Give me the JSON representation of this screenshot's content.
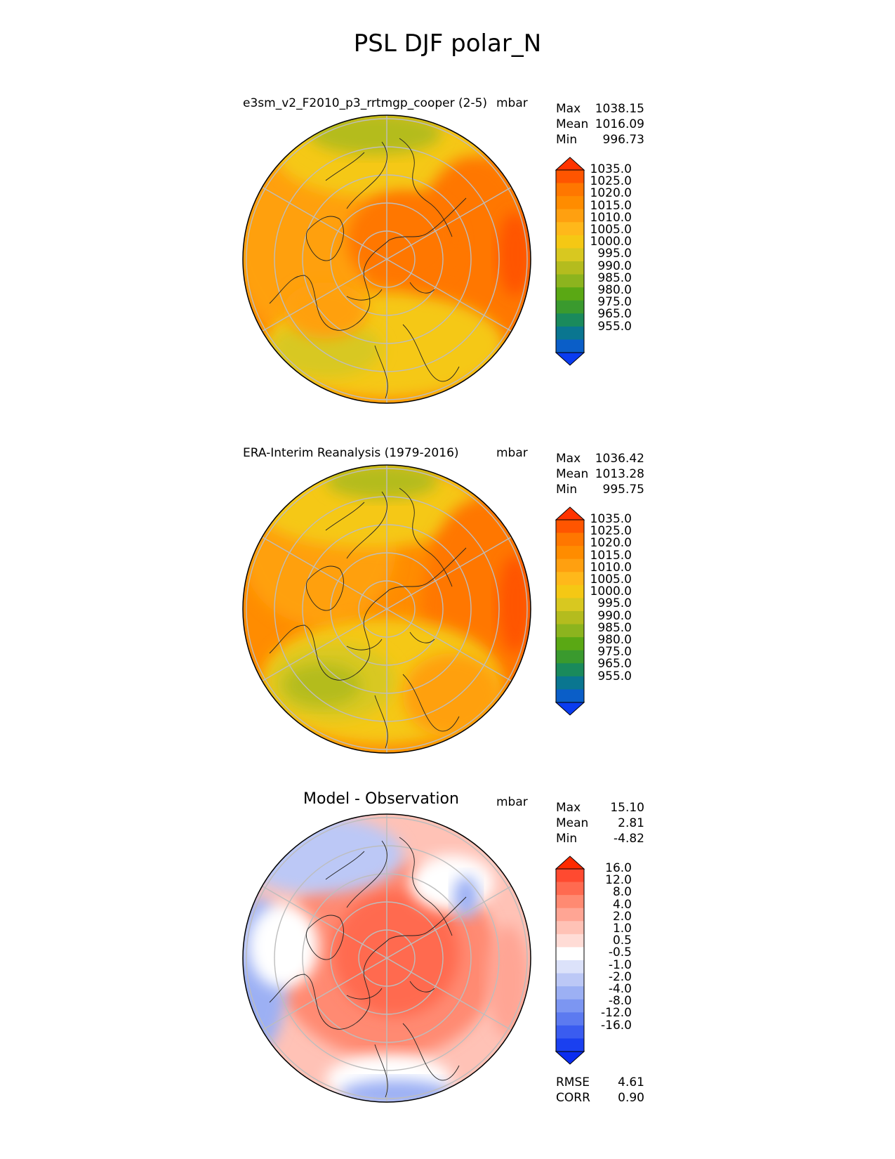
{
  "figure": {
    "title": "PSL DJF polar_N"
  },
  "panels": [
    {
      "title": "e3sm_v2_F2010_p3_rrtmgp_cooper (2-5)",
      "units": "mbar",
      "stats": {
        "max_label": "Max",
        "max": "1038.15",
        "mean_label": "Mean",
        "mean": "1016.09",
        "min_label": "Min",
        "min": "996.73"
      },
      "colorbar": {
        "ticks": [
          "1035.0",
          "1025.0",
          "1020.0",
          "1015.0",
          "1010.0",
          "1005.0",
          "1000.0",
          "995.0",
          "990.0",
          "985.0",
          "980.0",
          "975.0",
          "965.0",
          "955.0"
        ],
        "colors": [
          "#ff3300",
          "#ff5500",
          "#ff7700",
          "#ff8c00",
          "#ffa010",
          "#ffb81a",
          "#f5c814",
          "#d8c820",
          "#b4bc1e",
          "#8cb41e",
          "#5aa814",
          "#3a9a2e",
          "#1a8a5c",
          "#0a7690",
          "#0a5ec8",
          "#0a3cf0"
        ]
      }
    },
    {
      "title": "ERA-Interim Reanalysis (1979-2016)",
      "units": "mbar",
      "stats": {
        "max_label": "Max",
        "max": "1036.42",
        "mean_label": "Mean",
        "mean": "1013.28",
        "min_label": "Min",
        "min": "995.75"
      },
      "colorbar": {
        "ticks": [
          "1035.0",
          "1025.0",
          "1020.0",
          "1015.0",
          "1010.0",
          "1005.0",
          "1000.0",
          "995.0",
          "990.0",
          "985.0",
          "980.0",
          "975.0",
          "965.0",
          "955.0"
        ],
        "colors": [
          "#ff3300",
          "#ff5500",
          "#ff7700",
          "#ff8c00",
          "#ffa010",
          "#ffb81a",
          "#f5c814",
          "#d8c820",
          "#b4bc1e",
          "#8cb41e",
          "#5aa814",
          "#3a9a2e",
          "#1a8a5c",
          "#0a7690",
          "#0a5ec8",
          "#0a3cf0"
        ]
      }
    },
    {
      "title": "Model - Observation",
      "units": "mbar",
      "stats": {
        "max_label": "Max",
        "max": "15.10",
        "mean_label": "Mean",
        "mean": "2.81",
        "min_label": "Min",
        "min": "-4.82"
      },
      "colorbar": {
        "ticks": [
          "16.0",
          "12.0",
          "8.0",
          "4.0",
          "2.0",
          "1.0",
          "0.5",
          "-0.5",
          "-1.0",
          "-2.0",
          "-4.0",
          "-8.0",
          "-12.0",
          "-16.0"
        ],
        "colors": [
          "#ff2a00",
          "#ff4a30",
          "#ff6a50",
          "#ff8a72",
          "#ffa594",
          "#ffc2b6",
          "#ffdcd6",
          "#ffffff",
          "#dce2fa",
          "#bcc8f6",
          "#9cb0f4",
          "#7c96f2",
          "#5c7af0",
          "#3a5cf0",
          "#1a40f0",
          "#0a2cf0"
        ]
      },
      "metrics": {
        "rmse_label": "RMSE",
        "rmse": "4.61",
        "corr_label": "CORR",
        "corr": "0.90"
      }
    }
  ]
}
